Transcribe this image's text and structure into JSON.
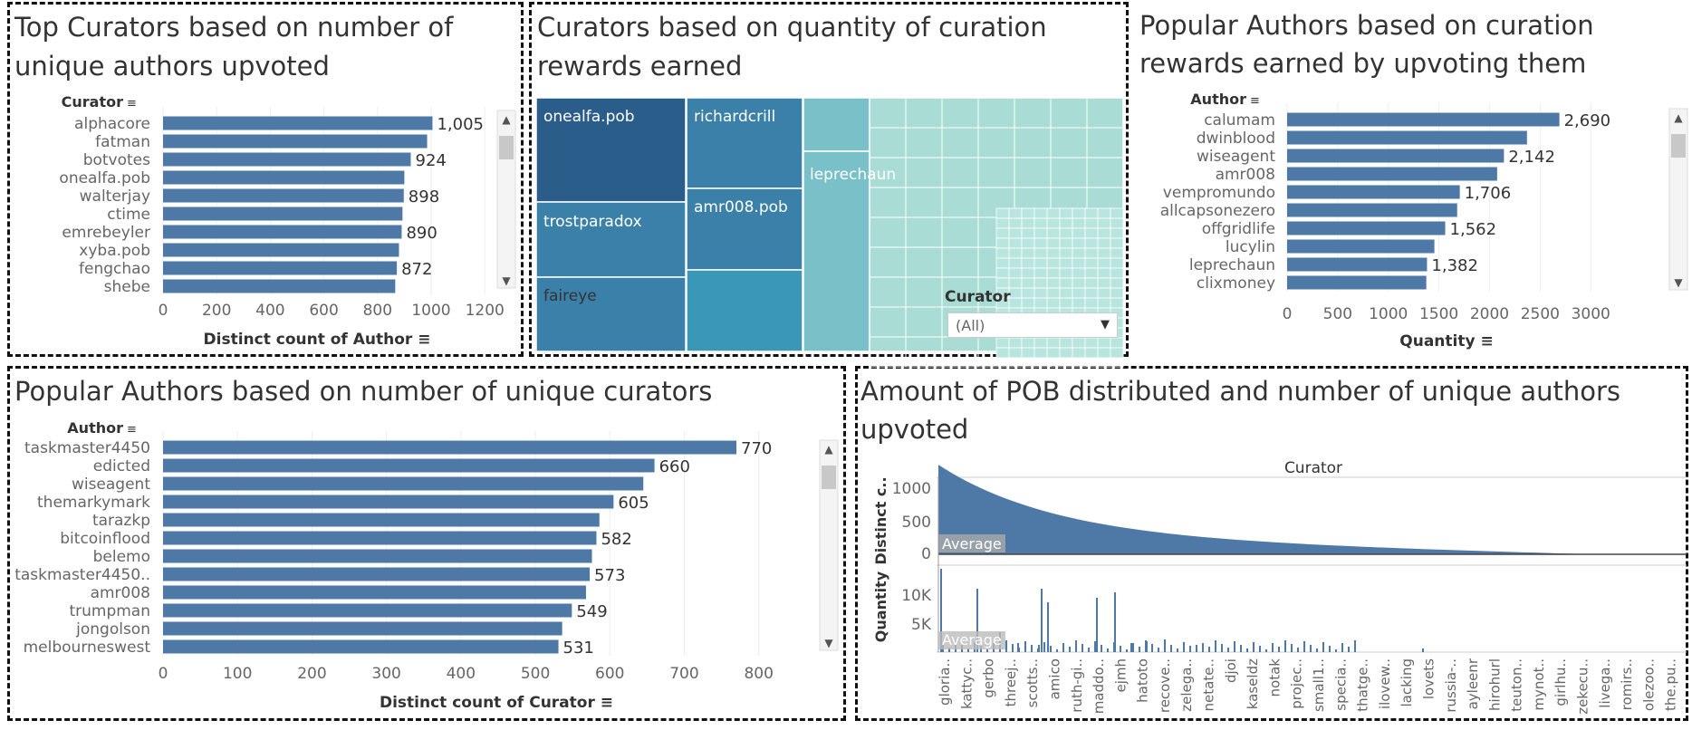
{
  "panels": {
    "top_curators": {
      "title_line1": "Top Curators based on number of",
      "title_line2": "unique authors upvoted"
    },
    "treemap": {
      "title_line1": "Curators based on quantity of curation",
      "title_line2": "rewards earned",
      "filter_label": "Curator",
      "filter_value": "(All)"
    },
    "popular_quantity": {
      "title_line1": "Popular Authors based on curation",
      "title_line2": "rewards earned by upvoting them"
    },
    "popular_curators": {
      "title_line1": "Popular Authors based on number of unique curators"
    },
    "pob": {
      "title_line1": "Amount of POB distributed and number of unique authors",
      "title_line2": "upvoted"
    }
  },
  "chart_data": [
    {
      "type": "bar",
      "orientation": "horizontal",
      "dim_label": "Curator",
      "xlabel": "Distinct count of Author",
      "categories": [
        "alphacore",
        "fatman",
        "botvotes",
        "onealfa.pob",
        "walterjay",
        "ctime",
        "emrebeyler",
        "xyba.pob",
        "fengchao",
        "shebe"
      ],
      "values": [
        1005,
        985,
        924,
        900,
        898,
        893,
        890,
        880,
        872,
        866
      ],
      "value_labels": [
        "1,005",
        "",
        "924",
        "",
        "898",
        "",
        "890",
        "",
        "872",
        ""
      ],
      "xticks": [
        "0",
        "200",
        "400",
        "600",
        "800",
        "1000",
        "1200"
      ],
      "xlim": [
        0,
        1250
      ],
      "color": "#4e79a7"
    },
    {
      "type": "treemap",
      "dim_label": "Curator",
      "labeled_cells": [
        "onealfa.pob",
        "richardcrill",
        "trostparadox",
        "amr008.pob",
        "faireye",
        "leprechaun"
      ],
      "colors": [
        "#2b5d8a",
        "#3a80a8",
        "#3b97b6",
        "#79c0c9",
        "#a8dcd5",
        "#b8e5de"
      ]
    },
    {
      "type": "bar",
      "orientation": "horizontal",
      "dim_label": "Author",
      "xlabel": "Quantity",
      "categories": [
        "calumam",
        "dwinblood",
        "wiseagent",
        "amr008",
        "vempromundo",
        "allcapsonezero",
        "offgridlife",
        "lucylin",
        "leprechaun",
        "clixmoney"
      ],
      "values": [
        2690,
        2370,
        2142,
        2075,
        1706,
        1680,
        1562,
        1455,
        1382,
        1375
      ],
      "value_labels": [
        "2,690",
        "",
        "2,142",
        "",
        "1,706",
        "",
        "1,562",
        "",
        "1,382",
        ""
      ],
      "xticks": [
        "0",
        "500",
        "1000",
        "1500",
        "2000",
        "2500",
        "3000"
      ],
      "xlim": [
        0,
        3150
      ],
      "color": "#4e79a7"
    },
    {
      "type": "bar",
      "orientation": "horizontal",
      "dim_label": "Author",
      "xlabel": "Distinct count of Curator",
      "categories": [
        "taskmaster4450",
        "edicted",
        "wiseagent",
        "themarkymark",
        "tarazkp",
        "bitcoinflood",
        "belemo",
        "taskmaster4450..",
        "amr008",
        "trumpman",
        "jongolson",
        "melbourneswest"
      ],
      "values": [
        770,
        660,
        645,
        605,
        586,
        582,
        576,
        573,
        568,
        549,
        536,
        531
      ],
      "value_labels": [
        "770",
        "660",
        "",
        "605",
        "",
        "582",
        "",
        "573",
        "",
        "549",
        "",
        "531"
      ],
      "xticks": [
        "0",
        "100",
        "200",
        "300",
        "400",
        "500",
        "600",
        "700",
        "800"
      ],
      "xlim": [
        0,
        860
      ],
      "color": "#4e79a7"
    },
    {
      "type": "bar",
      "dim_label": "Curator",
      "rows": [
        {
          "ylabel": "Distinct c..",
          "yticks": [
            "1000",
            "500",
            "0"
          ],
          "ylim": [
            0,
            1200
          ],
          "reference_line": "Average"
        },
        {
          "ylabel": "Quantity",
          "yticks": [
            "10K",
            "5K"
          ],
          "ylim": [
            0,
            14000
          ],
          "reference_line": "Average"
        }
      ],
      "categories": [
        "gloria..",
        "kattyc..",
        "gerbo",
        "threej..",
        "scotts..",
        "amico",
        "ruth-gi..",
        "maddo..",
        "ejmh",
        "hatoto",
        "recove..",
        "zelega..",
        "netate..",
        "djoi",
        "kaseldz",
        "notak",
        "projec..",
        "small1..",
        "specia..",
        "thatge..",
        "ilovew..",
        "lacking",
        "lovets",
        "russia-..",
        "ayleenr",
        "hirohurl",
        "teuton..",
        "mynot..",
        "girlhu..",
        "zekecu..",
        "livega..",
        "romirs..",
        "olezoo..",
        "the.pu.."
      ],
      "color": "#4e79a7"
    }
  ]
}
